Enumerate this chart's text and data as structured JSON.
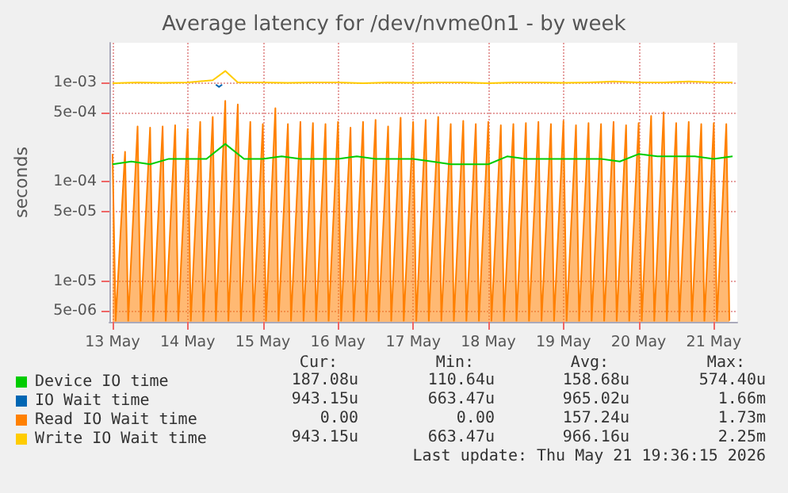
{
  "chart_data": {
    "type": "line",
    "title": "Average latency for /dev/nvme0n1 - by week",
    "ylabel": "seconds",
    "log": "y",
    "grid": true,
    "legend": "bottom left",
    "marker": "none",
    "line_style": "solid",
    "xlim": [
      "2026-05-13T11:00",
      "2026-05-21T19:30"
    ],
    "xticks": [
      {
        "value": "2026-05-13T12:00",
        "label": "13 May"
      },
      {
        "value": "2026-05-14T12:00",
        "label": "14 May"
      },
      {
        "value": "2026-05-15T12:00",
        "label": "15 May"
      },
      {
        "value": "2026-05-16T12:00",
        "label": "16 May"
      },
      {
        "value": "2026-05-17T12:00",
        "label": "17 May"
      },
      {
        "value": "2026-05-18T12:00",
        "label": "18 May"
      },
      {
        "value": "2026-05-19T12:00",
        "label": "19 May"
      },
      {
        "value": "2026-05-20T12:00",
        "label": "20 May"
      },
      {
        "value": "2026-05-21T12:00",
        "label": "21 May"
      }
    ],
    "ylim": [
      3.9e-06,
      0.0025
    ],
    "yticks": [
      {
        "value": 5e-06,
        "label": "5e-06"
      },
      {
        "value": 1e-05,
        "label": "1e-05"
      },
      {
        "value": 5e-05,
        "label": "5e-05"
      },
      {
        "value": 0.0001,
        "label": "1e-04"
      },
      {
        "value": 0.0005,
        "label": "5e-04"
      },
      {
        "value": 0.001,
        "label": "1e-03"
      }
    ],
    "series": [
      {
        "name": "Device IO time",
        "color": "#00cc00",
        "x": [
          "2026-05-13T12:00",
          "2026-05-13T18:00",
          "2026-05-14T00:00",
          "2026-05-14T06:00",
          "2026-05-14T12:00",
          "2026-05-14T18:00",
          "2026-05-15T00:00",
          "2026-05-15T06:00",
          "2026-05-15T12:00",
          "2026-05-15T18:00",
          "2026-05-16T00:00",
          "2026-05-16T06:00",
          "2026-05-16T12:00",
          "2026-05-16T18:00",
          "2026-05-17T00:00",
          "2026-05-17T06:00",
          "2026-05-17T12:00",
          "2026-05-17T18:00",
          "2026-05-18T00:00",
          "2026-05-18T06:00",
          "2026-05-18T12:00",
          "2026-05-18T18:00",
          "2026-05-19T00:00",
          "2026-05-19T06:00",
          "2026-05-19T12:00",
          "2026-05-19T18:00",
          "2026-05-20T00:00",
          "2026-05-20T06:00",
          "2026-05-20T12:00",
          "2026-05-20T18:00",
          "2026-05-21T00:00",
          "2026-05-21T06:00",
          "2026-05-21T12:00",
          "2026-05-21T18:00"
        ],
        "values": [
          0.00015,
          0.00016,
          0.00015,
          0.00017,
          0.00017,
          0.00017,
          0.00024,
          0.00017,
          0.00017,
          0.00018,
          0.00017,
          0.00017,
          0.00017,
          0.00018,
          0.00017,
          0.00017,
          0.00017,
          0.00016,
          0.00015,
          0.00015,
          0.00015,
          0.00018,
          0.00017,
          0.00017,
          0.00017,
          0.00017,
          0.00017,
          0.00016,
          0.00019,
          0.00018,
          0.00018,
          0.00018,
          0.00017,
          0.00018
        ]
      },
      {
        "name": "IO Wait time",
        "color": "#0066b3",
        "x": [
          "2026-05-14T21:00",
          "2026-05-14T22:00",
          "2026-05-14T23:00"
        ],
        "values": [
          0.00095,
          0.0009,
          0.00095
        ]
      },
      {
        "name": "Read IO Wait time",
        "color": "#ff8000",
        "type": "area",
        "x": [
          "2026-05-13T12:00",
          "2026-05-13T13:00",
          "2026-05-13T16:00",
          "2026-05-13T17:00",
          "2026-05-13T20:00",
          "2026-05-13T21:00",
          "2026-05-14T00:00",
          "2026-05-14T01:00",
          "2026-05-14T04:00",
          "2026-05-14T05:00",
          "2026-05-14T08:00",
          "2026-05-14T09:00",
          "2026-05-14T12:00",
          "2026-05-14T13:00",
          "2026-05-14T16:00",
          "2026-05-14T17:00",
          "2026-05-14T20:00",
          "2026-05-14T21:00",
          "2026-05-15T00:00",
          "2026-05-15T01:00",
          "2026-05-15T04:00",
          "2026-05-15T05:00",
          "2026-05-15T08:00",
          "2026-05-15T09:00",
          "2026-05-15T12:00",
          "2026-05-15T13:00",
          "2026-05-15T16:00",
          "2026-05-15T17:00",
          "2026-05-15T20:00",
          "2026-05-15T21:00",
          "2026-05-16T00:00",
          "2026-05-16T01:00",
          "2026-05-16T04:00",
          "2026-05-16T05:00",
          "2026-05-16T08:00",
          "2026-05-16T09:00",
          "2026-05-16T12:00",
          "2026-05-16T13:00",
          "2026-05-16T16:00",
          "2026-05-16T17:00",
          "2026-05-16T20:00",
          "2026-05-16T21:00",
          "2026-05-17T00:00",
          "2026-05-17T01:00",
          "2026-05-17T04:00",
          "2026-05-17T05:00",
          "2026-05-17T08:00",
          "2026-05-17T09:00",
          "2026-05-17T12:00",
          "2026-05-17T13:00",
          "2026-05-17T16:00",
          "2026-05-17T17:00",
          "2026-05-17T20:00",
          "2026-05-17T21:00",
          "2026-05-18T00:00",
          "2026-05-18T01:00",
          "2026-05-18T04:00",
          "2026-05-18T05:00",
          "2026-05-18T08:00",
          "2026-05-18T09:00",
          "2026-05-18T12:00",
          "2026-05-18T13:00",
          "2026-05-18T16:00",
          "2026-05-18T17:00",
          "2026-05-18T20:00",
          "2026-05-18T21:00",
          "2026-05-19T00:00",
          "2026-05-19T01:00",
          "2026-05-19T04:00",
          "2026-05-19T05:00",
          "2026-05-19T08:00",
          "2026-05-19T09:00",
          "2026-05-19T12:00",
          "2026-05-19T13:00",
          "2026-05-19T16:00",
          "2026-05-19T17:00",
          "2026-05-19T20:00",
          "2026-05-19T21:00",
          "2026-05-20T00:00",
          "2026-05-20T01:00",
          "2026-05-20T04:00",
          "2026-05-20T05:00",
          "2026-05-20T08:00",
          "2026-05-20T09:00",
          "2026-05-20T12:00",
          "2026-05-20T13:00",
          "2026-05-20T16:00",
          "2026-05-20T17:00",
          "2026-05-20T20:00",
          "2026-05-20T21:00",
          "2026-05-21T00:00",
          "2026-05-21T01:00",
          "2026-05-21T04:00",
          "2026-05-21T05:00",
          "2026-05-21T08:00",
          "2026-05-21T09:00",
          "2026-05-21T12:00",
          "2026-05-21T13:00",
          "2026-05-21T16:00",
          "2026-05-21T17:00"
        ],
        "values": [
          0.00019,
          4e-06,
          0.0002,
          4e-06,
          0.00036,
          4e-06,
          0.00035,
          4e-06,
          0.00036,
          4e-06,
          0.00037,
          4e-06,
          0.00034,
          4e-06,
          0.0004,
          4e-06,
          0.00045,
          4e-06,
          0.00065,
          4e-06,
          0.0006,
          4e-06,
          0.0004,
          4e-06,
          0.00038,
          4e-06,
          0.00055,
          4e-06,
          0.00038,
          4e-06,
          0.0004,
          4e-06,
          0.00039,
          4e-06,
          0.00038,
          4e-06,
          0.0004,
          4e-06,
          0.00035,
          4e-06,
          0.0004,
          4e-06,
          0.00042,
          4e-06,
          0.00036,
          4e-06,
          0.00044,
          4e-06,
          0.0004,
          4e-06,
          0.00042,
          4e-06,
          0.00045,
          4e-06,
          0.00038,
          4e-06,
          0.00041,
          4e-06,
          0.00038,
          4e-06,
          0.0004,
          4e-06,
          0.00037,
          4e-06,
          0.00038,
          4e-06,
          0.00039,
          4e-06,
          0.0004,
          4e-06,
          0.00038,
          4e-06,
          0.00041,
          4e-06,
          0.00037,
          4e-06,
          0.00039,
          4e-06,
          0.00038,
          4e-06,
          0.0004,
          4e-06,
          0.00037,
          4e-06,
          0.00039,
          4e-06,
          0.00046,
          4e-06,
          0.0005,
          4e-06,
          0.00039,
          4e-06,
          0.0004,
          4e-06,
          0.00038,
          4e-06,
          0.00039,
          4e-06,
          0.00038,
          4e-06
        ]
      },
      {
        "name": "Write IO Wait time",
        "color": "#ffcc00",
        "x": [
          "2026-05-13T12:00",
          "2026-05-13T20:00",
          "2026-05-14T04:00",
          "2026-05-14T12:00",
          "2026-05-14T20:00",
          "2026-05-15T00:00",
          "2026-05-15T04:00",
          "2026-05-15T12:00",
          "2026-05-15T20:00",
          "2026-05-16T04:00",
          "2026-05-16T12:00",
          "2026-05-16T20:00",
          "2026-05-17T04:00",
          "2026-05-17T12:00",
          "2026-05-17T20:00",
          "2026-05-18T04:00",
          "2026-05-18T12:00",
          "2026-05-18T20:00",
          "2026-05-19T04:00",
          "2026-05-19T12:00",
          "2026-05-19T20:00",
          "2026-05-20T04:00",
          "2026-05-20T12:00",
          "2026-05-20T20:00",
          "2026-05-21T04:00",
          "2026-05-21T12:00",
          "2026-05-21T18:00"
        ],
        "values": [
          0.00098,
          0.001,
          0.00099,
          0.001,
          0.00105,
          0.0013,
          0.001,
          0.001,
          0.00099,
          0.001,
          0.001,
          0.00098,
          0.001,
          0.00099,
          0.001,
          0.001,
          0.00098,
          0.001,
          0.001,
          0.00099,
          0.001,
          0.00102,
          0.001,
          0.001,
          0.00102,
          0.001,
          0.001
        ]
      }
    ],
    "annotations": [
      "Cur:",
      "Min:",
      "Avg:",
      "Max:",
      "187.08u",
      "110.64u",
      "158.68u",
      "574.40u",
      "943.15u",
      "663.47u",
      "965.02u",
      "1.66m",
      "0.00",
      "0.00",
      "157.24u",
      "1.73m",
      "943.15u",
      "663.47u",
      "966.16u",
      "2.25m",
      "Last update: Thu May 21 19:36:15 2026"
    ]
  }
}
